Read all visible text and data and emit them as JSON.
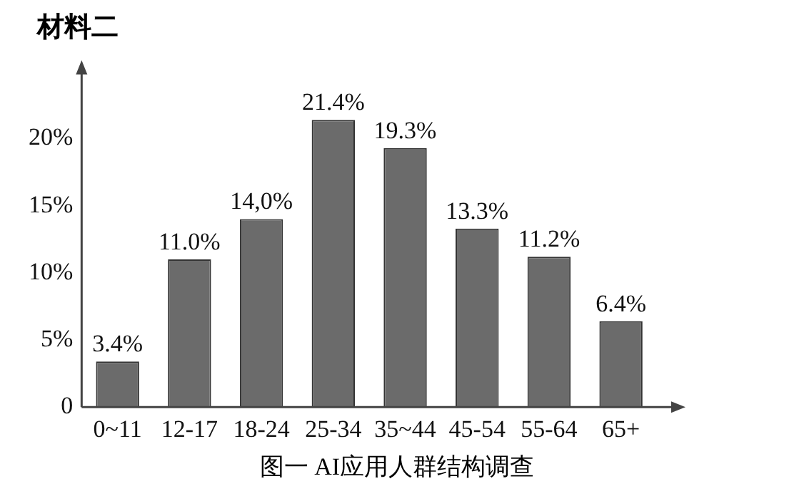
{
  "chart_data": {
    "type": "bar",
    "title": "材料二",
    "annotations": [
      "图一 AI应用人群结构调查"
    ],
    "categories": [
      "0~11",
      "12-17",
      "18-24",
      "25-34",
      "35~44",
      "45-54",
      "55-64",
      "65+"
    ],
    "values": [
      3.4,
      11.0,
      14.0,
      21.4,
      19.3,
      13.3,
      11.2,
      6.4
    ],
    "value_labels": [
      "3.4%",
      "11.0%",
      "14,0%",
      "21.4%",
      "19.3%",
      "13.3%",
      "11.2%",
      "6.4%"
    ],
    "color": "#6b6b6b",
    "ylim": [
      0,
      25
    ],
    "yticks": [
      {
        "value": 0,
        "label": "0"
      },
      {
        "value": 5,
        "label": "5%"
      },
      {
        "value": 10,
        "label": "10%"
      },
      {
        "value": 15,
        "label": "15%"
      },
      {
        "value": 20,
        "label": "20%"
      }
    ],
    "grid": false,
    "legend": false
  }
}
